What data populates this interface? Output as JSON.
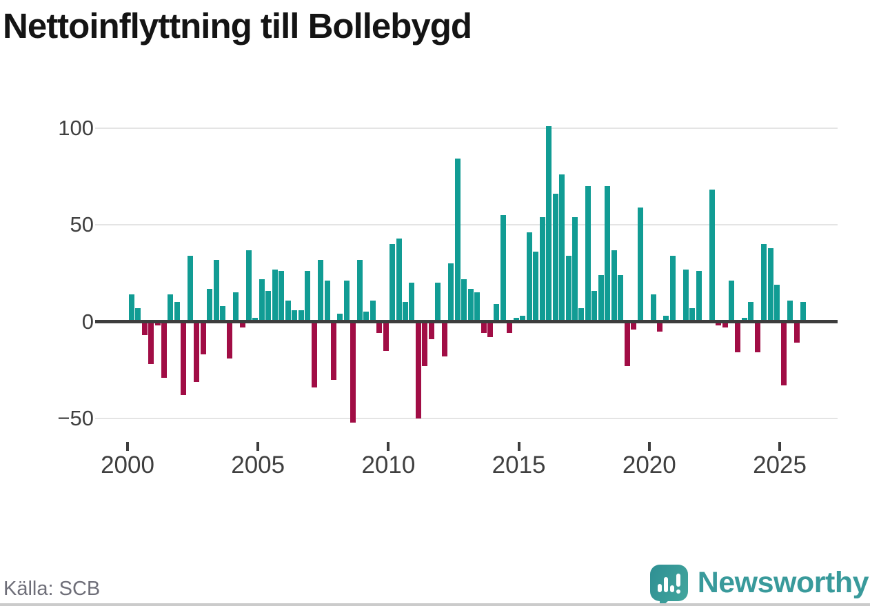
{
  "title": "Nettoinflyttning till Bollebygd",
  "source": "Källa: SCB",
  "brand": {
    "name": "Newsworthy"
  },
  "colors": {
    "positive": "#119c94",
    "negative": "#a10d45",
    "grid": "#e4e4e4",
    "zero_line": "#3d3d3d",
    "axis_text": "#3f3f3f",
    "source_text": "#6e6e78",
    "title_text": "#141414",
    "brand_teal": "#399a9b"
  },
  "chart_data": {
    "type": "bar",
    "title": "Nettoinflyttning till Bollebygd",
    "xlabel": "",
    "ylabel": "",
    "legend": "none",
    "grid": "horizontal",
    "ylim": [
      -60,
      107
    ],
    "y_ticks": [
      100,
      50,
      0,
      -50
    ],
    "y_tick_labels": [
      "100",
      "50",
      "0",
      "−50"
    ],
    "x_ticks": [
      "2000",
      "2005",
      "2010",
      "2015",
      "2020",
      "2025"
    ],
    "x": [
      "2000Q1",
      "2000Q2",
      "2000Q3",
      "2000Q4",
      "2001Q1",
      "2001Q2",
      "2001Q3",
      "2001Q4",
      "2002Q1",
      "2002Q2",
      "2002Q3",
      "2002Q4",
      "2003Q1",
      "2003Q2",
      "2003Q3",
      "2003Q4",
      "2004Q1",
      "2004Q2",
      "2004Q3",
      "2004Q4",
      "2005Q1",
      "2005Q2",
      "2005Q3",
      "2005Q4",
      "2006Q1",
      "2006Q2",
      "2006Q3",
      "2006Q4",
      "2007Q1",
      "2007Q2",
      "2007Q3",
      "2007Q4",
      "2008Q1",
      "2008Q2",
      "2008Q3",
      "2008Q4",
      "2009Q1",
      "2009Q2",
      "2009Q3",
      "2009Q4",
      "2010Q1",
      "2010Q2",
      "2010Q3",
      "2010Q4",
      "2011Q1",
      "2011Q2",
      "2011Q3",
      "2011Q4",
      "2012Q1",
      "2012Q2",
      "2012Q3",
      "2012Q4",
      "2013Q1",
      "2013Q2",
      "2013Q3",
      "2013Q4",
      "2014Q1",
      "2014Q2",
      "2014Q3",
      "2014Q4",
      "2015Q1",
      "2015Q2",
      "2015Q3",
      "2015Q4",
      "2016Q1",
      "2016Q2",
      "2016Q3",
      "2016Q4",
      "2017Q1",
      "2017Q2",
      "2017Q3",
      "2017Q4",
      "2018Q1",
      "2018Q2",
      "2018Q3",
      "2018Q4",
      "2019Q1",
      "2019Q2",
      "2019Q3",
      "2019Q4",
      "2020Q1",
      "2020Q2",
      "2020Q3",
      "2020Q4",
      "2021Q1",
      "2021Q2",
      "2021Q3",
      "2021Q4",
      "2022Q1",
      "2022Q2",
      "2022Q3",
      "2022Q4",
      "2023Q1",
      "2023Q2",
      "2023Q3",
      "2023Q4",
      "2024Q1",
      "2024Q2",
      "2024Q3",
      "2024Q4",
      "2025Q1",
      "2025Q2",
      "2025Q3",
      "2025Q4"
    ],
    "values": [
      14,
      7,
      -7,
      -22,
      -2,
      -29,
      14,
      10,
      -38,
      34,
      -31,
      -17,
      17,
      32,
      8,
      -19,
      15,
      -3,
      37,
      2,
      22,
      16,
      27,
      26,
      11,
      6,
      6,
      26,
      -34,
      32,
      21,
      -30,
      4,
      21,
      -52,
      32,
      5,
      11,
      -6,
      -15,
      40,
      43,
      10,
      20,
      -50,
      -23,
      -9,
      20,
      -18,
      30,
      84,
      22,
      17,
      15,
      -6,
      -8,
      9,
      55,
      -6,
      2,
      3,
      46,
      36,
      54,
      101,
      66,
      76,
      34,
      54,
      7,
      70,
      16,
      24,
      70,
      37,
      24,
      -23,
      -4,
      59,
      0,
      14,
      -5,
      3,
      34,
      0,
      27,
      7,
      26,
      0,
      68,
      -2,
      -3,
      21,
      -16,
      2,
      10,
      -16,
      40,
      38,
      19,
      -33,
      11,
      -11,
      10
    ]
  }
}
